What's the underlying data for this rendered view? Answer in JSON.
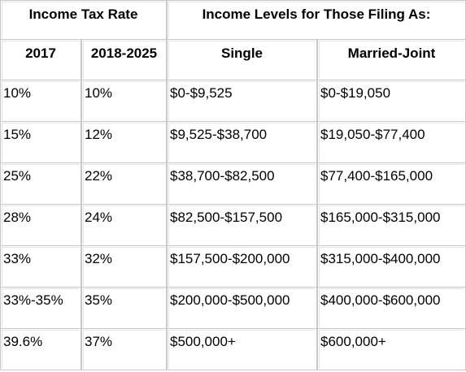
{
  "header": {
    "groups": [
      "Income Tax Rate",
      "Income Levels for Those Filing As:"
    ],
    "columns": [
      "2017",
      "2018-2025",
      "Single",
      "Married-Joint"
    ]
  },
  "table": {
    "rows": [
      [
        "10%",
        "10%",
        "$0-$9,525",
        "$0-$19,050"
      ],
      [
        "15%",
        "12%",
        "$9,525-$38,700",
        "$19,050-$77,400"
      ],
      [
        "25%",
        "22%",
        "$38,700-$82,500",
        "$77,400-$165,000"
      ],
      [
        "28%",
        "24%",
        "$82,500-$157,500",
        "$165,000-$315,000"
      ],
      [
        "33%",
        "32%",
        "$157,500-$200,000",
        "$315,000-$400,000"
      ],
      [
        "33%-35%",
        "35%",
        "$200,000-$500,000",
        "$400,000-$600,000"
      ],
      [
        "39.6%",
        "37%",
        "$500,000+",
        "$600,000+"
      ]
    ]
  }
}
